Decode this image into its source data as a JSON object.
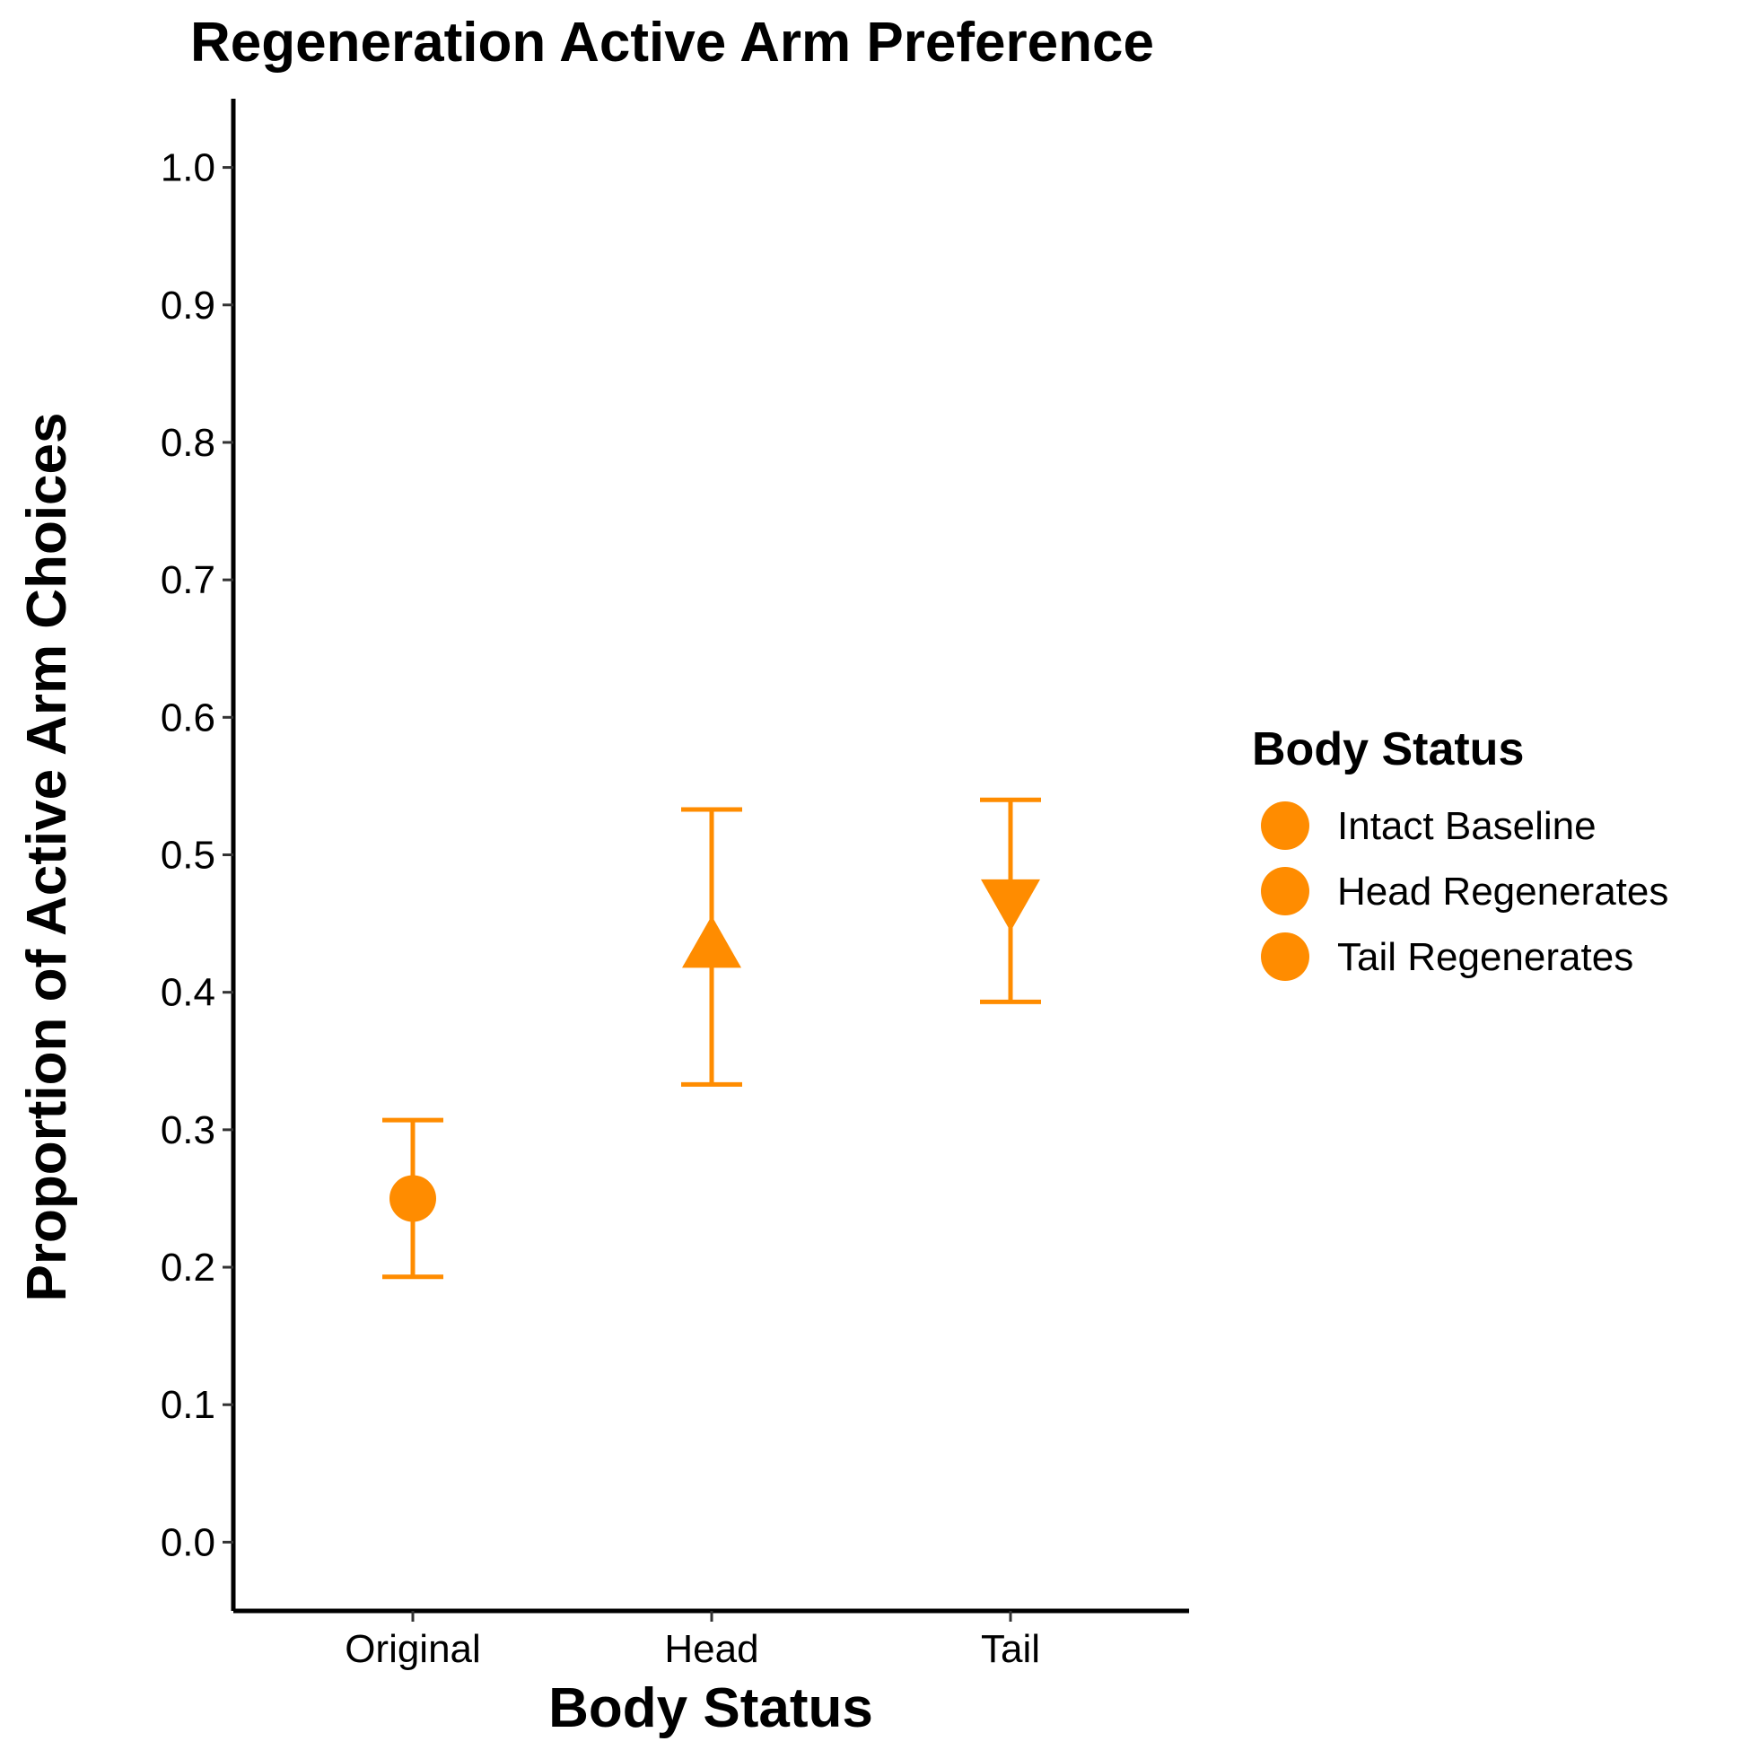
{
  "chart_data": {
    "type": "scatter",
    "title": "Regeneration Active Arm Preference",
    "xlabel": "Body Status",
    "ylabel": "Proportion of Active Arm Choices",
    "categories": [
      "Original",
      "Head",
      "Tail"
    ],
    "ylim": [
      -0.05,
      1.05
    ],
    "yticks": [
      0.0,
      0.1,
      0.2,
      0.3,
      0.4,
      0.5,
      0.6,
      0.7,
      0.8,
      0.9,
      1.0
    ],
    "ytick_labels": [
      "0.0",
      "0.1",
      "0.2",
      "0.3",
      "0.4",
      "0.5",
      "0.6",
      "0.7",
      "0.8",
      "0.9",
      "1.0"
    ],
    "grid": false,
    "color": "#FF8C00",
    "series": [
      {
        "name": "Intact Baseline",
        "category": "Original",
        "value": 0.25,
        "lower": 0.193,
        "upper": 0.307,
        "shape": "circle"
      },
      {
        "name": "Head Regenerates",
        "category": "Head",
        "value": 0.433,
        "lower": 0.333,
        "upper": 0.533,
        "shape": "triangle-up"
      },
      {
        "name": "Tail Regenerates",
        "category": "Tail",
        "value": 0.467,
        "lower": 0.393,
        "upper": 0.54,
        "shape": "triangle-down"
      }
    ],
    "legend": {
      "title": "Body Status",
      "position": "right",
      "entries": [
        "Intact Baseline",
        "Head Regenerates",
        "Tail Regenerates"
      ]
    }
  }
}
